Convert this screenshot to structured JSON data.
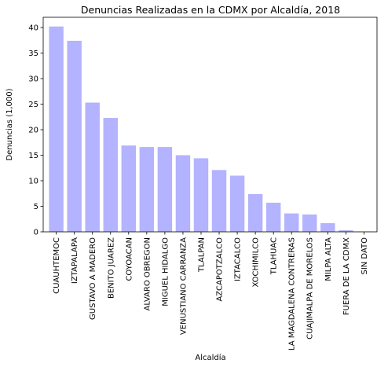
{
  "chart_data": {
    "type": "bar",
    "title": "Denuncias Realizadas en la CDMX por Alcaldía, 2018",
    "xlabel": "Alcaldía",
    "ylabel": "Denuncias (1,000)",
    "ylim": [
      0,
      42
    ],
    "yticks": [
      "0",
      "5",
      "10",
      "15",
      "20",
      "25",
      "30",
      "35",
      "40"
    ],
    "grid": false,
    "bar_color": "#b3b3ff",
    "categories": [
      "CUAUHTEMOC",
      "IZTAPALAPA",
      "GUSTAVO A MADERO",
      "BENITO JUAREZ",
      "COYOACAN",
      "ALVARO OBREGON",
      "MIGUEL HIDALGO",
      "VENUSTIANO CARRANZA",
      "TLALPAN",
      "AZCAPOTZALCO",
      "IZTACALCO",
      "XOCHIMILCO",
      "TLAHUAC",
      "LA MAGDALENA CONTRERAS",
      "CUAJIMALPA DE MORELOS",
      "MILPA ALTA",
      "FUERA DE LA CDMX",
      "SIN DATO"
    ],
    "values": [
      40.2,
      37.4,
      25.3,
      22.3,
      16.9,
      16.6,
      16.6,
      15.0,
      14.4,
      12.1,
      11.0,
      7.4,
      5.7,
      3.6,
      3.4,
      1.7,
      0.3,
      0.05
    ]
  }
}
